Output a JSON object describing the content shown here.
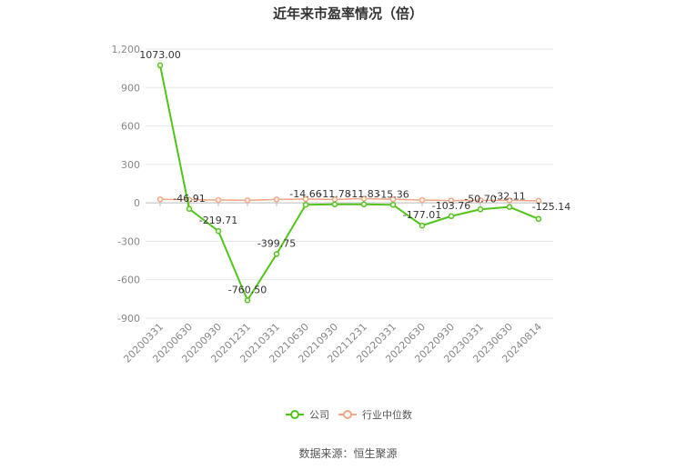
{
  "chart_data": {
    "type": "line",
    "title": "近年来市盈率情况（倍）",
    "categories": [
      "20200331",
      "20200630",
      "20200930",
      "20201231",
      "20210331",
      "20210630",
      "20210930",
      "20211231",
      "20220331",
      "20220630",
      "20220930",
      "20230331",
      "20230630",
      "20240814"
    ],
    "series": [
      {
        "name": "公司",
        "color": "#52c41a",
        "values": [
          1073.0,
          -46.91,
          -219.71,
          -760.5,
          -399.75,
          -14.66,
          -11.78,
          -11.83,
          -15.36,
          -177.01,
          -103.76,
          -50.7,
          -32.11,
          -125.14
        ],
        "labels": [
          "1073.00",
          "-46.91",
          "-219.71",
          "-760.50",
          "-399.75",
          "-14.66",
          "-11.78",
          "-11.83",
          "-15.36",
          "-177.01",
          "-103.76",
          "-50.70",
          "-32.11",
          "-125.14"
        ]
      },
      {
        "name": "行业中位数",
        "color": "#f4a582",
        "values": [
          28,
          25,
          22,
          20,
          27,
          29,
          27,
          33,
          28,
          22,
          18,
          20,
          20,
          16
        ]
      }
    ],
    "yticks": [
      "1,200",
      "900",
      "600",
      "300",
      "0",
      "-300",
      "-600",
      "-900"
    ],
    "ylim": [
      -900,
      1200
    ],
    "grid": true,
    "legend": "bottom-center"
  },
  "source": "数据来源：恒生聚源"
}
